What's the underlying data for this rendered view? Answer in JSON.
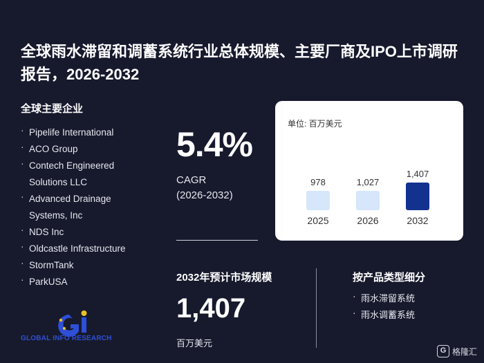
{
  "title": "全球雨水滞留和调蓄系统行业总体规模、主要厂商及IPO上市调研报告，2026-2032",
  "companies": {
    "heading": "全球主要企业",
    "items": [
      "Pipelife International",
      "ACO Group",
      "Contech Engineered Solutions LLC",
      "Advanced Drainage Systems, Inc",
      "NDS Inc",
      "Oldcastle Infrastructure",
      "StormTank",
      "ParkUSA"
    ]
  },
  "cagr": {
    "value": "5.4%",
    "label": "CAGR",
    "period": "(2026-2032)"
  },
  "chart_data": {
    "type": "bar",
    "unit_label": "单位: 百万美元",
    "categories": [
      "2025",
      "2026",
      "2032"
    ],
    "values": [
      978,
      1027,
      1407
    ],
    "value_labels": [
      "978",
      "1,027",
      "1,407"
    ],
    "colors": [
      "#d6e6fb",
      "#d6e6fb",
      "#13328f"
    ],
    "title": "",
    "xlabel": "",
    "ylabel": ""
  },
  "market": {
    "heading": "2032年预计市场规模",
    "value": "1,407",
    "unit": "百万美元"
  },
  "segments": {
    "heading": "按产品类型细分",
    "items": [
      "雨水滞留系统",
      "雨水调蓄系统"
    ]
  },
  "brand": {
    "logo_text": "GLOBAL INFO RESEARCH",
    "logo_colors": [
      "#2e4fd6",
      "#e8c322"
    ],
    "watermark": "格隆汇"
  }
}
